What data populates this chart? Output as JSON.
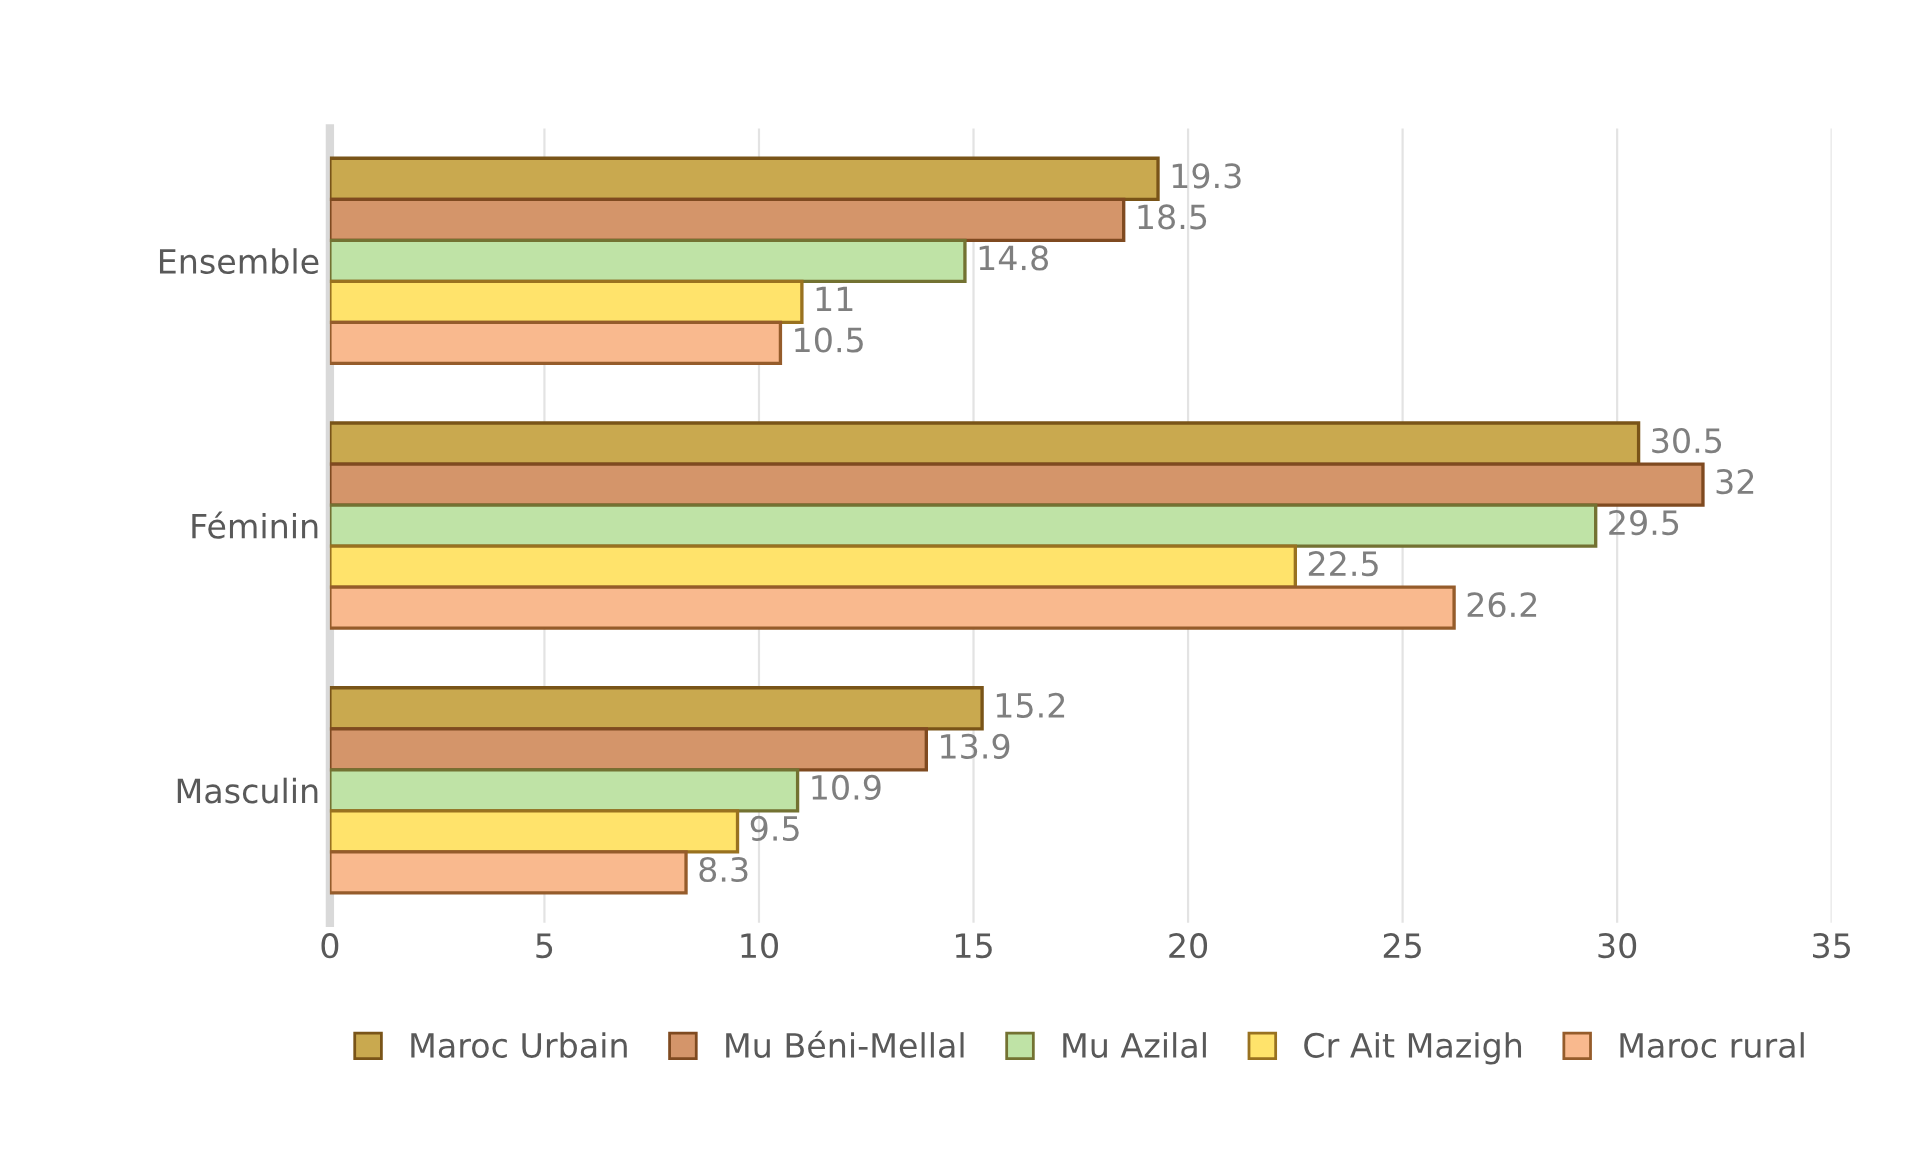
{
  "chart_data": {
    "type": "bar",
    "orientation": "horizontal",
    "categories": [
      "Ensemble",
      "Féminin",
      "Masculin"
    ],
    "series": [
      {
        "name": "Maroc Urbain",
        "color": "#c9a94f",
        "values": [
          19.3,
          30.5,
          15.2
        ]
      },
      {
        "name": "Mu Béni-Mellal",
        "color": "#d4956a",
        "values": [
          18.5,
          32,
          13.9
        ]
      },
      {
        "name": "Mu Azilal",
        "color": "#bfe3a6",
        "values": [
          14.8,
          29.5,
          10.9
        ]
      },
      {
        "name": "Cr Ait Mazigh",
        "color": "#ffe36b",
        "values": [
          11,
          22.5,
          9.5
        ]
      },
      {
        "name": "Maroc rural",
        "color": "#f9b98e",
        "values": [
          10.5,
          26.2,
          8.3
        ]
      }
    ],
    "xlim": [
      0,
      35
    ],
    "xticks": [
      0,
      5,
      10,
      15,
      20,
      25,
      30,
      35
    ],
    "grid": "x",
    "legend": "bottom",
    "data_labels": true
  }
}
